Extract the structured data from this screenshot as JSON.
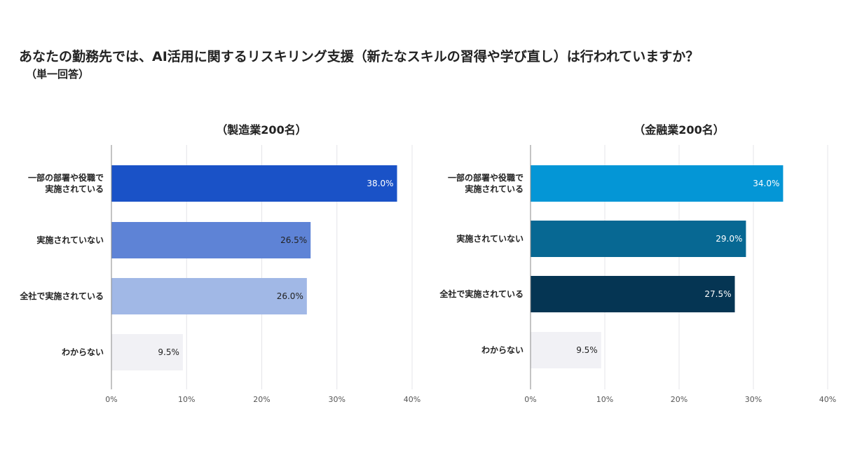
{
  "page": {
    "title": "あなたの勤務先では、AI活用に関するリスキリング支援（新たなスキルの習得や学び直し）は行われていますか？",
    "subtitle": "（単一回答）"
  },
  "chart_data": [
    {
      "type": "bar",
      "orientation": "horizontal",
      "title": "（製造業200名）",
      "categories": [
        "一部の部署や役職で実施されている",
        "実施されていない",
        "全社で実施されている",
        "わからない"
      ],
      "category_lines": [
        [
          "一部の部署や役職で",
          "実施されている"
        ],
        [
          "実施されていない"
        ],
        [
          "全社で実施されている"
        ],
        [
          "わからない"
        ]
      ],
      "values": [
        38.0,
        26.5,
        26.0,
        9.5
      ],
      "value_labels": [
        "38.0%",
        "26.5%",
        "26.0%",
        "9.5%"
      ],
      "bar_colors": [
        "#1a52c7",
        "#5e83d6",
        "#a1b8e6",
        "#f1f1f5"
      ],
      "label_colors": [
        "#ffffff",
        "#222222",
        "#222222",
        "#222222"
      ],
      "xlim": [
        0,
        40
      ],
      "xticks": [
        "0%",
        "10%",
        "20%",
        "30%",
        "40%"
      ],
      "grid": true
    },
    {
      "type": "bar",
      "orientation": "horizontal",
      "title": "（金融業200名）",
      "categories": [
        "一部の部署や役職で実施されている",
        "実施されていない",
        "全社で実施されている",
        "わからない"
      ],
      "category_lines": [
        [
          "一部の部署や役職で",
          "実施されている"
        ],
        [
          "実施されていない"
        ],
        [
          "全社で実施されている"
        ],
        [
          "わからない"
        ]
      ],
      "values": [
        34.0,
        29.0,
        27.5,
        9.5
      ],
      "value_labels": [
        "34.0%",
        "29.0%",
        "27.5%",
        "9.5%"
      ],
      "bar_colors": [
        "#0496d6",
        "#076893",
        "#053553",
        "#f1f1f5"
      ],
      "label_colors": [
        "#ffffff",
        "#ffffff",
        "#ffffff",
        "#222222"
      ],
      "xlim": [
        0,
        40
      ],
      "xticks": [
        "0%",
        "10%",
        "20%",
        "30%",
        "40%"
      ],
      "grid": true
    }
  ]
}
